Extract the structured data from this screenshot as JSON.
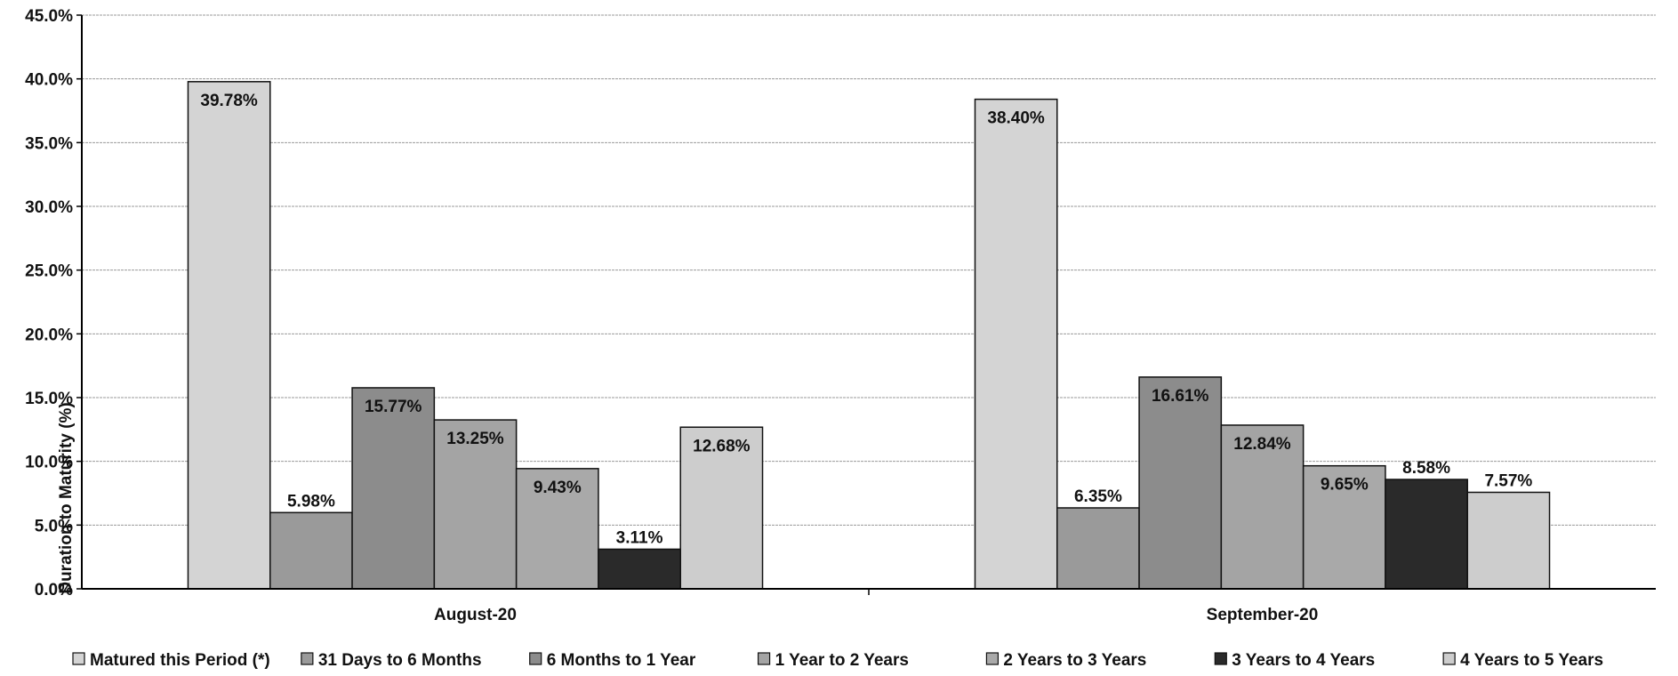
{
  "chart_data": {
    "type": "bar",
    "title": "",
    "xlabel": "",
    "ylabel": "Duration to Maturity (%)",
    "ylim": [
      0,
      45
    ],
    "y_ticks": [
      "0.0%",
      "5.0%",
      "10.0%",
      "15.0%",
      "20.0%",
      "25.0%",
      "30.0%",
      "35.0%",
      "40.0%",
      "45.0%"
    ],
    "grid": true,
    "legend_position": "bottom",
    "categories": [
      "August-20",
      "September-20"
    ],
    "series": [
      {
        "name": "Matured this Period (*)",
        "values": [
          39.78,
          38.4
        ],
        "labels": [
          "39.78%",
          "38.40%"
        ],
        "color": "#d4d4d4"
      },
      {
        "name": "31 Days to 6 Months",
        "values": [
          5.98,
          6.35
        ],
        "labels": [
          "5.98%",
          "6.35%"
        ],
        "color": "#9a9a9a"
      },
      {
        "name": "6 Months to 1 Year",
        "values": [
          15.77,
          16.61
        ],
        "labels": [
          "15.77%",
          "16.61%"
        ],
        "color": "#8c8c8c"
      },
      {
        "name": "1 Year to 2 Years",
        "values": [
          13.25,
          12.84
        ],
        "labels": [
          "13.25%",
          "12.84%"
        ],
        "color": "#a4a4a4"
      },
      {
        "name": "2 Years to 3 Years",
        "values": [
          9.43,
          9.65
        ],
        "labels": [
          "9.43%",
          "9.65%"
        ],
        "color": "#a9a9a9"
      },
      {
        "name": "3 Years to 4 Years",
        "values": [
          3.11,
          8.58
        ],
        "labels": [
          "3.11%",
          "8.58%"
        ],
        "color": "#2a2a2a"
      },
      {
        "name": "4 Years to 5 Years",
        "values": [
          12.68,
          7.57
        ],
        "labels": [
          "12.68%",
          "7.57%"
        ],
        "color": "#cdcdcd"
      }
    ]
  }
}
